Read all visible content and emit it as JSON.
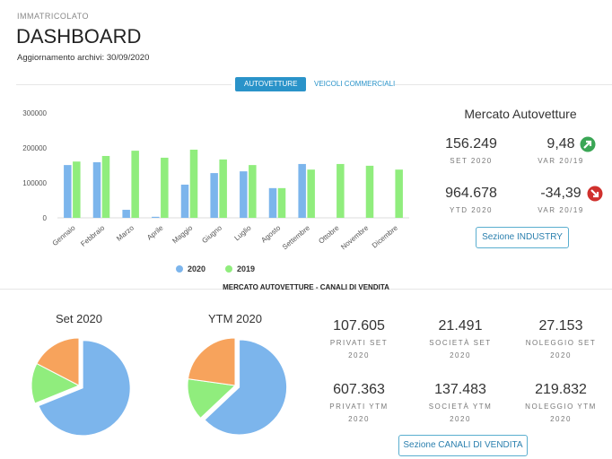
{
  "header": {
    "kicker": "IMMATRICOLATO",
    "title": "DASHBOARD",
    "update_label": "Aggiornamento archivi:",
    "update_date": "30/09/2020"
  },
  "tabs": [
    "AUTOVETTURE",
    "VEICOLI COMMERCIALI"
  ],
  "chart_data": [
    {
      "type": "bar",
      "categories": [
        "Gennaio",
        "Febbraio",
        "Marzo",
        "Aprile",
        "Maggio",
        "Giugno",
        "Luglio",
        "Agosto",
        "Settembre",
        "Ottobre",
        "Novembre",
        "Dicembre"
      ],
      "series": [
        {
          "name": "2020",
          "color": "#7cb5ec",
          "values": [
            151000,
            159000,
            23000,
            3000,
            95000,
            128000,
            133000,
            85000,
            154000,
            null,
            null,
            null
          ]
        },
        {
          "name": "2019",
          "color": "#90ed7d",
          "values": [
            161000,
            177000,
            192000,
            172000,
            195000,
            167000,
            151000,
            85000,
            138000,
            154000,
            149000,
            138000
          ]
        }
      ],
      "ylim": [
        0,
        300000
      ],
      "yticks": [
        0,
        100000,
        200000,
        300000
      ],
      "grid": false
    },
    {
      "type": "pie",
      "title": "Set 2020",
      "values": [
        107605,
        21491,
        27153
      ],
      "colors": [
        "#7cb5ec",
        "#90ed7d",
        "#f7a35c"
      ]
    },
    {
      "type": "pie",
      "title": "YTM 2020",
      "values": [
        607363,
        137483,
        219832
      ],
      "colors": [
        "#7cb5ec",
        "#90ed7d",
        "#f7a35c"
      ]
    }
  ],
  "market": {
    "title": "Mercato Autovetture",
    "items": [
      {
        "value": "156.249",
        "label": "SET 2020"
      },
      {
        "value": "9,48",
        "label": "VAR 20/19"
      },
      {
        "value": "964.678",
        "label": "YTD 2020"
      },
      {
        "value": "-34,39",
        "label": "VAR 20/19"
      }
    ],
    "button": "Sezione INDUSTRY"
  },
  "channels": {
    "title": "MERCATO AUTOVETTURE - CANALI DI VENDITA",
    "items": [
      {
        "value": "107.605",
        "label": "PRIVATI SET 2020"
      },
      {
        "value": "21.491",
        "label": "SOCIETÀ SET 2020"
      },
      {
        "value": "27.153",
        "label": "NOLEGGIO SET 2020"
      },
      {
        "value": "607.363",
        "label": "PRIVATI YTM 2020"
      },
      {
        "value": "137.483",
        "label": "SOCIETÀ YTM 2020"
      },
      {
        "value": "219.832",
        "label": "NOLEGGIO YTM 2020"
      }
    ],
    "button": "Sezione CANALI DI VENDITA"
  }
}
